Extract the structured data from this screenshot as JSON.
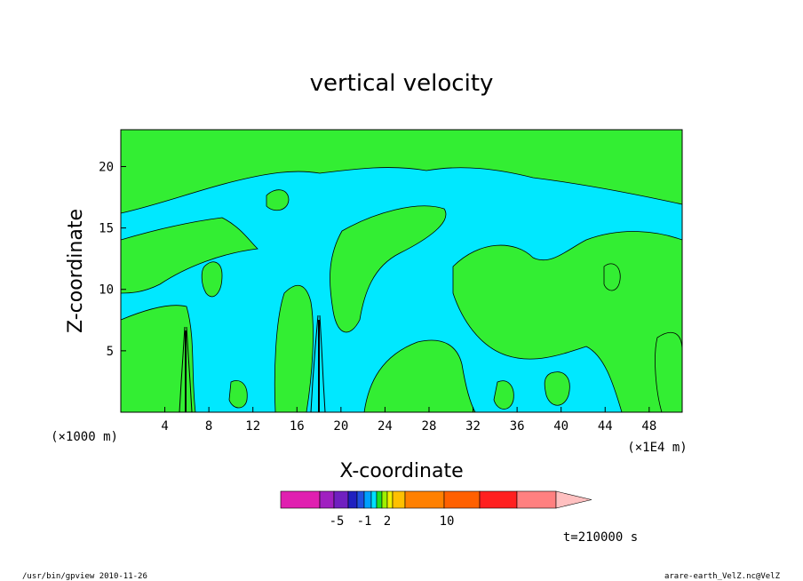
{
  "chart_data": {
    "type": "contour",
    "title": "vertical velocity",
    "xlabel": "X-coordinate",
    "ylabel": "Z-coordinate",
    "x_unit_left": "(×1000 m)",
    "x_unit_right": "(×1E4 m)",
    "xlim": [
      0,
      51
    ],
    "ylim": [
      0,
      23
    ],
    "x_ticks": [
      "4",
      "8",
      "12",
      "16",
      "20",
      "24",
      "28",
      "32",
      "36",
      "40",
      "44",
      "48"
    ],
    "y_ticks": [
      "5",
      "10",
      "15",
      "20"
    ],
    "time_label": "t=210000 s",
    "colorbar": {
      "colors": [
        "#e020b0",
        "#a020c0",
        "#7020c0",
        "#2020c0",
        "#2050e0",
        "#00a0ff",
        "#00e0ff",
        "#20e020",
        "#a0f000",
        "#f0f000",
        "#ffc000",
        "#ff8000",
        "#ff6000",
        "#ff2020",
        "#ff8080"
      ],
      "labels": [
        "-5",
        "-1",
        "2",
        "10"
      ],
      "extend_color": "#ffc0c0"
    },
    "fill_colors": {
      "negative": "#00e8ff",
      "positive": "#33ee33"
    }
  },
  "footer": {
    "left": "/usr/bin/gpview   2010-11-26",
    "right": "arare-earth_VelZ.nc@VelZ"
  }
}
